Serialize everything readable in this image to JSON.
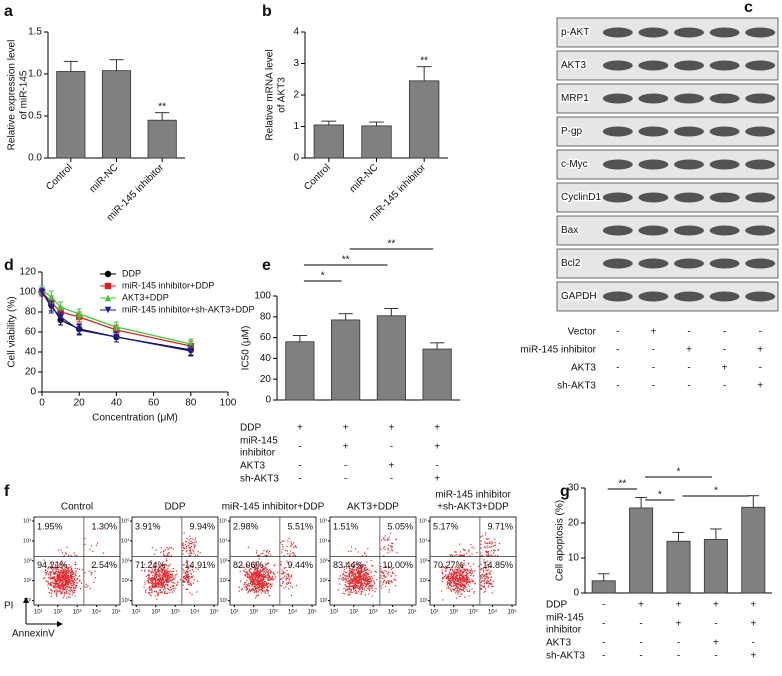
{
  "chart_data": [
    {
      "type": "bar",
      "panel": "a",
      "ylabel": [
        "Relative expression level",
        "of miR-145"
      ],
      "categories": [
        "Control",
        "miR-NC",
        "miR-145 inhibitor"
      ],
      "values": [
        1.03,
        1.04,
        0.45
      ],
      "errors": [
        0.12,
        0.13,
        0.09
      ],
      "annotations": [
        null,
        null,
        "**"
      ],
      "color": "#808080",
      "ylim": [
        0,
        1.5
      ],
      "yticks": [
        {
          "value": 0,
          "label": "0.0"
        },
        {
          "value": 0.5,
          "label": "0.5"
        },
        {
          "value": 1,
          "label": "1.0"
        },
        {
          "value": 1.5,
          "label": "1.5"
        }
      ]
    },
    {
      "type": "bar",
      "panel": "b",
      "ylabel": [
        "Relative mRNA level",
        "of AKT3"
      ],
      "categories": [
        "Control",
        "miR-NC",
        "miR-145 inhibitor"
      ],
      "values": [
        1.05,
        1.02,
        2.45
      ],
      "errors": [
        0.12,
        0.12,
        0.45
      ],
      "annotations": [
        null,
        null,
        "**"
      ],
      "color": "#808080",
      "ylim": [
        0,
        4
      ],
      "yticks": [
        0,
        1,
        2,
        3,
        4
      ]
    },
    {
      "type": "western_blot",
      "panel": "c",
      "proteins": [
        "p-AKT",
        "AKT3",
        "MRP1",
        "P-gp",
        "c-Myc",
        "CyclinD1",
        "Bax",
        "Bcl2",
        "GAPDH"
      ],
      "conditions": [
        {
          "label": [
            "Vector"
          ],
          "signs": [
            "-",
            "+",
            "-",
            "-",
            "-"
          ]
        },
        {
          "label": [
            "miR-145 inhibitor"
          ],
          "signs": [
            "-",
            "-",
            "+",
            "-",
            "+"
          ]
        },
        {
          "label": [
            "AKT3"
          ],
          "signs": [
            "-",
            "-",
            "-",
            "+",
            "-"
          ]
        },
        {
          "label": [
            "sh-AKT3"
          ],
          "signs": [
            "-",
            "-",
            "-",
            "-",
            "+"
          ]
        }
      ]
    },
    {
      "type": "line",
      "panel": "d",
      "xlabel": "Concentration (μM)",
      "ylabel": "Cell viability (%)",
      "x": [
        0,
        5,
        10,
        20,
        40,
        80
      ],
      "xlim": [
        0,
        100
      ],
      "xticks": [
        0,
        20,
        40,
        60,
        80,
        100
      ],
      "ylim": [
        0,
        120
      ],
      "yticks": [
        0,
        20,
        40,
        60,
        80,
        100,
        120
      ],
      "series": [
        {
          "name": "DDP",
          "color": "#000000",
          "marker": "circle",
          "values": [
            100,
            87,
            72,
            63,
            55,
            42
          ],
          "errors": [
            4,
            6,
            5,
            5,
            5,
            5
          ]
        },
        {
          "name": "miR-145 inhibitor+DDP",
          "color": "#e41a1c",
          "marker": "square",
          "values": [
            100,
            90,
            80,
            75,
            62,
            46
          ],
          "errors": [
            4,
            6,
            5,
            5,
            5,
            5
          ]
        },
        {
          "name": "AKT3+DDP",
          "color": "#33cc33",
          "marker": "triangle-up",
          "values": [
            102,
            95,
            85,
            78,
            65,
            48
          ],
          "errors": [
            4,
            6,
            5,
            5,
            5,
            5
          ]
        },
        {
          "name": "miR-145 inhibitor+sh-AKT3+DDP",
          "color": "#1a1aa6",
          "marker": "triangle-down",
          "values": [
            100,
            85,
            75,
            62,
            55,
            41
          ],
          "errors": [
            4,
            6,
            5,
            5,
            5,
            5
          ]
        }
      ]
    },
    {
      "type": "bar",
      "panel": "e",
      "ylabel": [
        "IC50 (μM)"
      ],
      "values": [
        56,
        77,
        81,
        49
      ],
      "errors": [
        6,
        6,
        7,
        6
      ],
      "color": "#808080",
      "ylim": [
        0,
        100
      ],
      "yticks": [
        0,
        20,
        40,
        60,
        80,
        100
      ],
      "brackets": [
        {
          "pair": [
            0,
            1
          ],
          "label": "*"
        },
        {
          "pair": [
            0,
            2
          ],
          "label": "**"
        },
        {
          "pair": [
            1,
            3
          ],
          "label": "**"
        }
      ],
      "conditions": [
        {
          "label": [
            "DDP"
          ],
          "signs": [
            "+",
            "+",
            "+",
            "+"
          ]
        },
        {
          "label": [
            "miR-145",
            "inhibitor"
          ],
          "signs": [
            "-",
            "+",
            "-",
            "+"
          ]
        },
        {
          "label": [
            "AKT3"
          ],
          "signs": [
            "-",
            "-",
            "+",
            "-"
          ]
        },
        {
          "label": [
            "sh-AKT3"
          ],
          "signs": [
            "-",
            "-",
            "-",
            "+"
          ]
        }
      ]
    },
    {
      "type": "flow_cytometry",
      "panel": "f",
      "xlabel": "AnnexinV",
      "ylabel": "PI",
      "log": true,
      "lim": [
        6,
        160000
      ],
      "ticks": [
        {
          "value": 10,
          "label": "10¹"
        },
        {
          "value": 100,
          "label": "10²"
        },
        {
          "value": 1000,
          "label": "10³"
        },
        {
          "value": 10000,
          "label": "10⁴"
        },
        {
          "value": 100000,
          "label": "10⁵"
        }
      ],
      "color": "#e8262b",
      "plots": [
        {
          "title": [
            "Control"
          ],
          "values": [
            1.95,
            1.3,
            94.21,
            2.54
          ],
          "value_labels": [
            "1.95%",
            "1.30%",
            "94.21%",
            "2.54%"
          ]
        },
        {
          "title": [
            "DDP"
          ],
          "values": [
            3.91,
            9.94,
            71.24,
            14.91
          ],
          "value_labels": [
            "3.91%",
            "9.94%",
            "71.24%",
            "14.91%"
          ]
        },
        {
          "title": [
            "miR-145 inhibitor+DDP"
          ],
          "values": [
            2.98,
            5.51,
            82.06,
            9.44
          ],
          "value_labels": [
            "2.98%",
            "5.51%",
            "82.06%",
            "9.44%"
          ]
        },
        {
          "title": [
            "AKT3+DDP"
          ],
          "values": [
            1.51,
            5.05,
            83.44,
            10.0
          ],
          "value_labels": [
            "1.51%",
            "5.05%",
            "83.44%",
            "10.00%"
          ]
        },
        {
          "title": [
            "miR-145 inhibitor",
            "+sh-AKT3+DDP"
          ],
          "values": [
            5.17,
            9.71,
            70.27,
            14.85
          ],
          "value_labels": [
            "5.17%",
            "9.71%",
            "70.27%",
            "14.85%"
          ]
        }
      ]
    },
    {
      "type": "bar",
      "panel": "g",
      "ylabel": [
        "Cell apoptosis (%)"
      ],
      "values": [
        3.5,
        24.3,
        14.8,
        15.3,
        24.5
      ],
      "errors": [
        2,
        3,
        2.5,
        3,
        3.3
      ],
      "color": "#808080",
      "ylim": [
        0,
        30
      ],
      "yticks": [
        0,
        10,
        20,
        30
      ],
      "brackets": [
        {
          "pair": [
            0,
            1
          ],
          "label": "**"
        },
        {
          "pair": [
            1,
            3
          ],
          "label": "*"
        },
        {
          "pair": [
            1,
            2
          ],
          "label": "*"
        },
        {
          "pair": [
            2,
            4
          ],
          "label": "*"
        }
      ],
      "conditions": [
        {
          "label": [
            "DDP"
          ],
          "signs": [
            "-",
            "+",
            "+",
            "+",
            "+"
          ]
        },
        {
          "label": [
            "miR-145",
            "inhibitor"
          ],
          "signs": [
            "-",
            "-",
            "+",
            "-",
            "+"
          ]
        },
        {
          "label": [
            "AKT3"
          ],
          "signs": [
            "-",
            "-",
            "-",
            "+",
            "-"
          ]
        },
        {
          "label": [
            "sh-AKT3"
          ],
          "signs": [
            "-",
            "-",
            "-",
            "-",
            "+"
          ]
        }
      ]
    }
  ]
}
